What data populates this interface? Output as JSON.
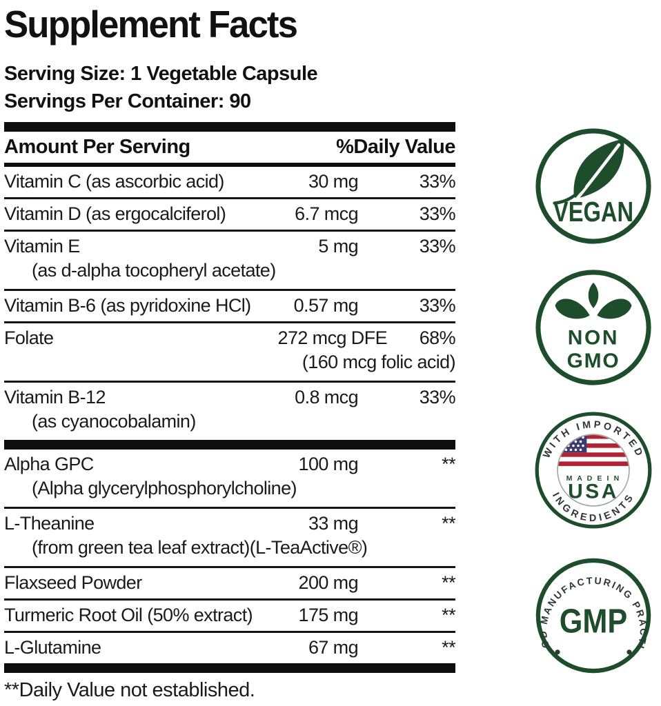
{
  "title": "Supplement Facts",
  "serving": {
    "size": "Serving Size: 1 Vegetable Capsule",
    "per_container": "Servings Per Container: 90"
  },
  "table": {
    "header": {
      "amount": "Amount Per Serving",
      "dv": "%Daily Value"
    },
    "rows": [
      {
        "name": "Vitamin C (as ascorbic acid)",
        "amount": "30 mg",
        "dv": "33%"
      },
      {
        "name": "Vitamin D (as ergocalciferol)",
        "amount": "6.7 mcg",
        "dv": "33%"
      },
      {
        "name": "Vitamin E",
        "amount": "5 mg",
        "dv": "33%",
        "sub": "(as d-alpha tocopheryl acetate)"
      },
      {
        "name": "Vitamin B-6 (as pyridoxine HCl)",
        "amount": "0.57 mg",
        "dv": "33%"
      },
      {
        "name": "Folate",
        "amount": "272 mcg DFE",
        "dv": "68%",
        "sub": "(160 mcg folic acid)"
      },
      {
        "name": "Vitamin B-12",
        "amount": "0.8 mcg",
        "dv": "33%",
        "sub": "(as cyanocobalamin)"
      },
      {
        "name": "Alpha GPC",
        "amount": "100  mg",
        "dv": "**",
        "sub": "(Alpha glycerylphosphorylcholine)"
      },
      {
        "name": "L-Theanine",
        "amount": "33  mg",
        "dv": "**",
        "sub": "(from green tea leaf extract)(L-TeaActive®)"
      },
      {
        "name": "Flaxseed Powder",
        "amount": "200  mg",
        "dv": "**"
      },
      {
        "name": "Turmeric Root Oil (50% extract)",
        "amount": "175  mg",
        "dv": "**"
      },
      {
        "name": "L-Glutamine",
        "amount": "67  mg",
        "dv": "**"
      }
    ],
    "footnote": "**Daily Value not established."
  },
  "badges": {
    "vegan": {
      "label": "VEGAN"
    },
    "non_gmo": {
      "line1": "NON",
      "line2": "GMO"
    },
    "usa": {
      "arc_top": "WITH IMPORTED",
      "arc_bottom": "INGREDIENTS",
      "made_in": "M A D E   I N",
      "country": "USA"
    },
    "gmp": {
      "arc": "GOOD MANUFACTURING PRACTICE",
      "label": "GMP"
    }
  },
  "colors": {
    "green": "#1e4d2b",
    "arc_text": "#2e3733",
    "flag_red": "#b22234",
    "flag_blue": "#3c3b6e",
    "ink": "#0d0d0d"
  }
}
